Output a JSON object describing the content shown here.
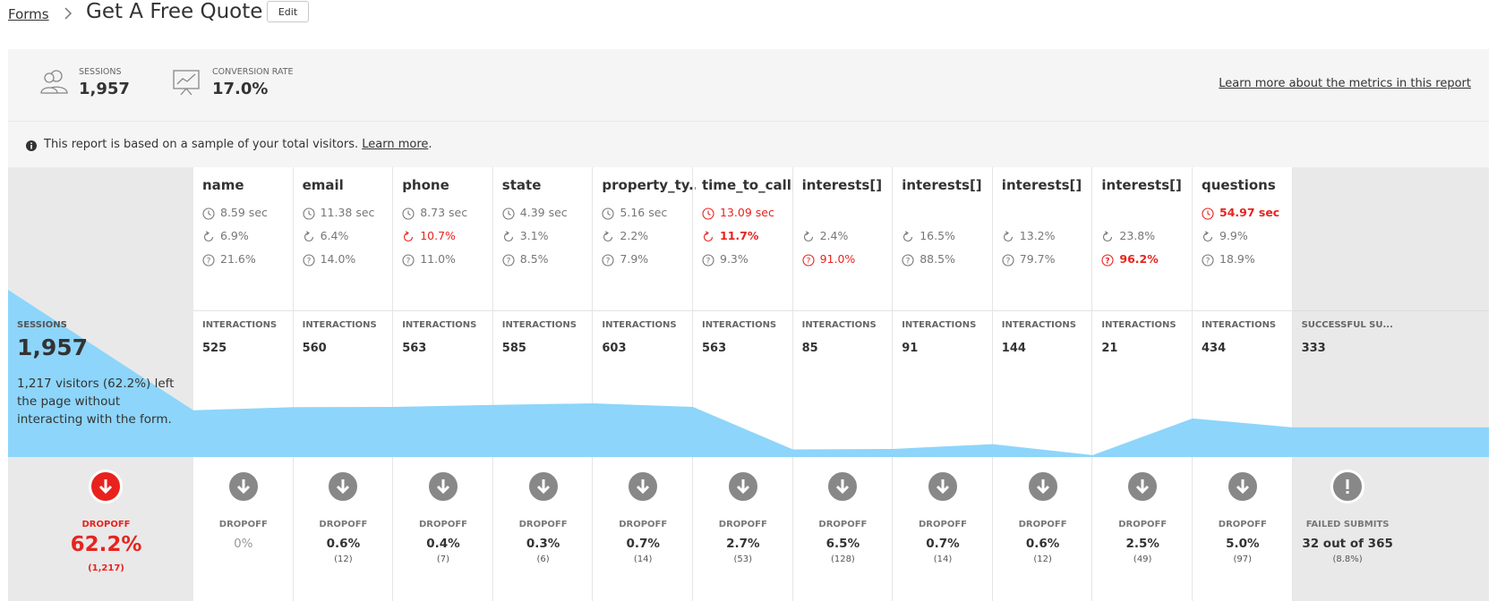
{
  "breadcrumb": {
    "parent": "Forms",
    "title": "Get A Free Quote",
    "edit_label": "Edit"
  },
  "metrics": {
    "sessions_label": "SESSIONS",
    "sessions_value": "1,957",
    "conversion_label": "CONVERSION RATE",
    "conversion_value": "17.0%",
    "learn_more": "Learn more about the metrics in this report"
  },
  "notice": {
    "text": "This report is based on a sample of your total visitors. ",
    "link": "Learn more",
    "end": "."
  },
  "sessions": {
    "label": "SESSIONS",
    "value": "1,957",
    "description": "1,217 visitors (62.2%) left the page without interacting with the form.",
    "dropoff_label": "DROPOFF",
    "dropoff_value": "62.2%",
    "dropoff_count": "(1,217)"
  },
  "interactions_label": "INTERACTIONS",
  "dropoff_label": "DROPOFF",
  "fields": [
    {
      "name": "name",
      "time": "8.59 sec",
      "refill": "6.9%",
      "blank": "21.6%",
      "interactions": "525",
      "dropoff": "0%",
      "dropoff_count": "",
      "interaction_level": 525
    },
    {
      "name": "email",
      "time": "11.38 sec",
      "refill": "6.4%",
      "blank": "14.0%",
      "interactions": "560",
      "dropoff": "0.6%",
      "dropoff_count": "(12)",
      "interaction_level": 560
    },
    {
      "name": "phone",
      "time": "8.73 sec",
      "refill": "10.7%",
      "refill_alert": "red",
      "blank": "11.0%",
      "interactions": "563",
      "dropoff": "0.4%",
      "dropoff_count": "(7)",
      "interaction_level": 563
    },
    {
      "name": "state",
      "time": "4.39 sec",
      "refill": "3.1%",
      "blank": "8.5%",
      "interactions": "585",
      "dropoff": "0.3%",
      "dropoff_count": "(6)",
      "interaction_level": 585
    },
    {
      "name": "property_ty...",
      "time": "5.16 sec",
      "refill": "2.2%",
      "blank": "7.9%",
      "interactions": "603",
      "dropoff": "0.7%",
      "dropoff_count": "(14)",
      "interaction_level": 603
    },
    {
      "name": "time_to_call",
      "time": "13.09 sec",
      "time_alert": "red",
      "refill": "11.7%",
      "refill_alert": "redbold",
      "blank": "9.3%",
      "interactions": "563",
      "dropoff": "2.7%",
      "dropoff_count": "(53)",
      "interaction_level": 563
    },
    {
      "name": "interests[]",
      "time": "",
      "refill": "2.4%",
      "blank": "91.0%",
      "blank_alert": "red",
      "interactions": "85",
      "dropoff": "6.5%",
      "dropoff_count": "(128)",
      "interaction_level": 85
    },
    {
      "name": "interests[]",
      "time": "",
      "refill": "16.5%",
      "blank": "88.5%",
      "interactions": "91",
      "dropoff": "0.7%",
      "dropoff_count": "(14)",
      "interaction_level": 91
    },
    {
      "name": "interests[]",
      "time": "",
      "refill": "13.2%",
      "blank": "79.7%",
      "interactions": "144",
      "dropoff": "0.6%",
      "dropoff_count": "(12)",
      "interaction_level": 144
    },
    {
      "name": "interests[]",
      "time": "",
      "refill": "23.8%",
      "blank": "96.2%",
      "blank_alert": "redbold",
      "interactions": "21",
      "dropoff": "2.5%",
      "dropoff_count": "(49)",
      "interaction_level": 21
    },
    {
      "name": "questions",
      "time": "54.97 sec",
      "time_alert": "redbold",
      "refill": "9.9%",
      "blank": "18.9%",
      "interactions": "434",
      "dropoff": "5.0%",
      "dropoff_count": "(97)",
      "interaction_level": 434
    }
  ],
  "success": {
    "label": "SUCCESSFUL SU...",
    "value": "333",
    "failed_label": "FAILED SUBMITS",
    "failed_value": "32 out of 365",
    "failed_pct": "(8.8%)"
  },
  "colors": {
    "funnel": "#8dd5fa",
    "dropoff_red": "#e8231e",
    "dropoff_icon": "#888888"
  },
  "icons": {
    "sessions": "users-icon",
    "conversion": "chart-board-icon",
    "time": "clock-icon",
    "refill": "refresh-icon",
    "blank": "question-icon",
    "dropoff": "arrow-down-icon",
    "failed": "exclamation-icon"
  }
}
